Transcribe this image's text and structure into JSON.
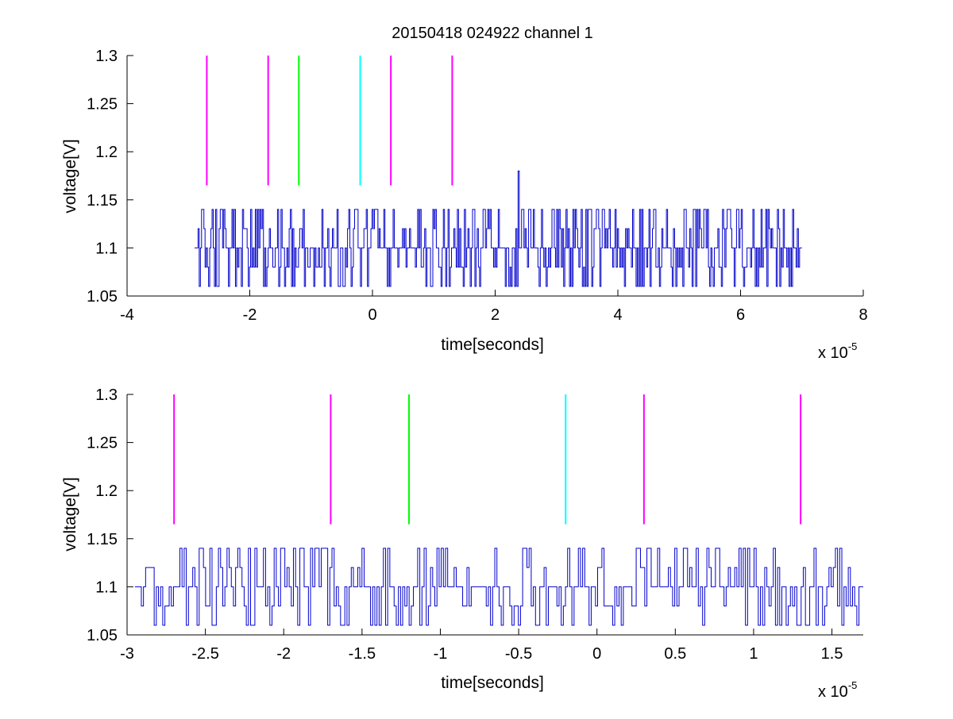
{
  "chart_data": [
    {
      "type": "line",
      "title": "20150418 024922 channel 1",
      "xlabel": "time[seconds]",
      "ylabel": "voltage[V]",
      "x_multiplier_label": "x 10",
      "x_multiplier_exponent": "-5",
      "xlim": [
        -4,
        8
      ],
      "ylim": [
        1.05,
        1.3
      ],
      "xticks": [
        "-4",
        "-2",
        "0",
        "2",
        "4",
        "6",
        "8"
      ],
      "yticks": [
        "1.05",
        "1.1",
        "1.15",
        "1.2",
        "1.25",
        "1.3"
      ],
      "grid": false,
      "series": [
        {
          "color": "#0000cc",
          "x_range": [
            -2.9,
            7.0
          ],
          "baseline": 1.1,
          "levels": [
            1.06,
            1.08,
            1.1,
            1.12,
            1.14
          ],
          "spike": {
            "x": 2.38,
            "y": 1.18
          }
        }
      ],
      "markers": [
        {
          "x": -2.7,
          "color": "#ff00ff",
          "y_range": [
            1.165,
            1.3
          ]
        },
        {
          "x": -1.7,
          "color": "#ff00ff",
          "y_range": [
            1.165,
            1.3
          ]
        },
        {
          "x": -1.2,
          "color": "#00ff00",
          "y_range": [
            1.165,
            1.3
          ]
        },
        {
          "x": -0.2,
          "color": "#00ffff",
          "y_range": [
            1.165,
            1.3
          ]
        },
        {
          "x": 0.3,
          "color": "#ff00ff",
          "y_range": [
            1.165,
            1.3
          ]
        },
        {
          "x": 1.3,
          "color": "#ff00ff",
          "y_range": [
            1.165,
            1.3
          ]
        }
      ]
    },
    {
      "type": "line",
      "title": "",
      "xlabel": "time[seconds]",
      "ylabel": "voltage[V]",
      "x_multiplier_label": "x 10",
      "x_multiplier_exponent": "-5",
      "xlim": [
        -3,
        1.7
      ],
      "ylim": [
        1.05,
        1.3
      ],
      "xticks": [
        "-3",
        "-2.5",
        "-2",
        "-1.5",
        "-1",
        "-0.5",
        "0",
        "0.5",
        "1",
        "1.5"
      ],
      "yticks": [
        "1.05",
        "1.1",
        "1.15",
        "1.2",
        "1.25",
        "1.3"
      ],
      "grid": false,
      "series": [
        {
          "color": "#0000cc",
          "x_range": [
            -2.95,
            1.7
          ],
          "baseline": 1.1,
          "levels": [
            1.06,
            1.08,
            1.1,
            1.12,
            1.14
          ]
        }
      ],
      "markers": [
        {
          "x": -2.7,
          "color": "#ff00ff",
          "y_range": [
            1.165,
            1.3
          ]
        },
        {
          "x": -1.7,
          "color": "#ff00ff",
          "y_range": [
            1.165,
            1.3
          ]
        },
        {
          "x": -1.2,
          "color": "#00ff00",
          "y_range": [
            1.165,
            1.3
          ]
        },
        {
          "x": -0.2,
          "color": "#00ffff",
          "y_range": [
            1.165,
            1.3
          ]
        },
        {
          "x": 0.3,
          "color": "#ff00ff",
          "y_range": [
            1.165,
            1.3
          ]
        },
        {
          "x": 1.3,
          "color": "#ff00ff",
          "y_range": [
            1.165,
            1.3
          ]
        }
      ]
    }
  ]
}
